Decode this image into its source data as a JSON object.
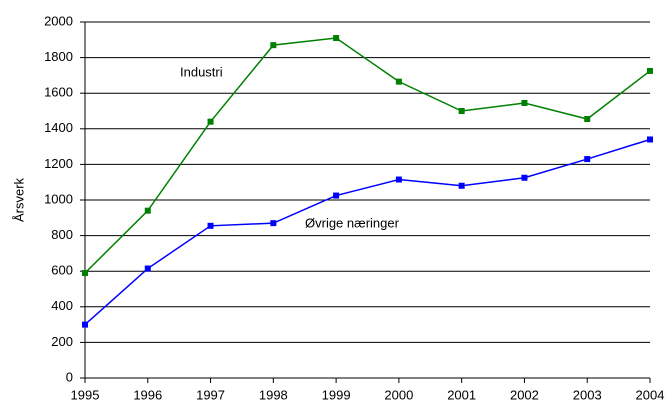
{
  "chart_data": {
    "type": "line",
    "ylabel": "Årsverk",
    "x": [
      1995,
      1996,
      1997,
      1998,
      1999,
      2000,
      2001,
      2002,
      2003,
      2004
    ],
    "series": [
      {
        "name": "Industri",
        "color": "#008000",
        "values": [
          590,
          940,
          1440,
          1870,
          1910,
          1665,
          1500,
          1545,
          1455,
          1725
        ]
      },
      {
        "name": "Øvrige næringer",
        "color": "#0000ff",
        "values": [
          300,
          615,
          855,
          870,
          1025,
          1115,
          1080,
          1125,
          1230,
          1340
        ]
      }
    ],
    "xlim": [
      1995,
      2004
    ],
    "xticks": [
      1995,
      1996,
      1997,
      1998,
      1999,
      2000,
      2001,
      2002,
      2003,
      2004
    ],
    "ylim": [
      0,
      2000
    ],
    "yticks": [
      0,
      200,
      400,
      600,
      800,
      1000,
      1200,
      1400,
      1600,
      1800,
      2000
    ],
    "grid": true
  }
}
